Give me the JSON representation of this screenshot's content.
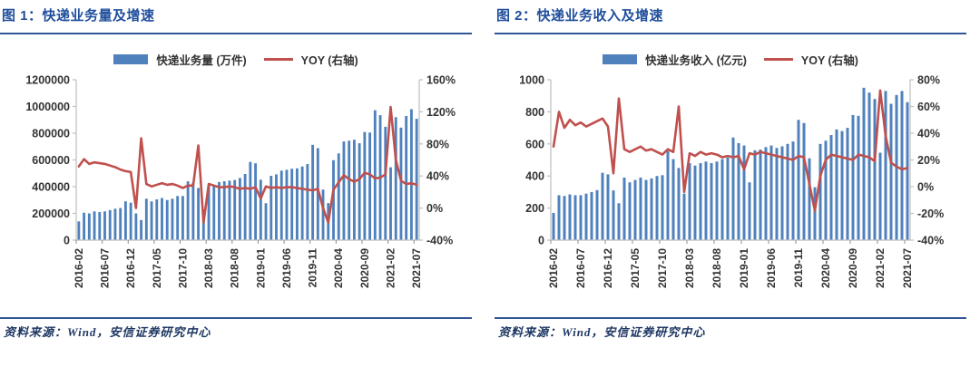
{
  "figures": [
    {
      "title": "图 1：快递业务量及增速",
      "source": "资料来源：Wind，安信证券研究中心"
    },
    {
      "title": "图 2：快递业务收入及增速",
      "source": "资料来源：Wind，安信证券研究中心"
    }
  ],
  "colors": {
    "bar": "#4F81BD",
    "line": "#C0504D",
    "title_blue": "#1F4E9C",
    "rule_blue": "#2F5597",
    "source_navy": "#1F3864",
    "axis_gray": "#BFBFBF",
    "tick_text": "#333333"
  },
  "chart_data": [
    {
      "type": "bar",
      "title": "图 1：快递业务量及增速",
      "x": [
        "2016-02",
        "2016-03",
        "2016-04",
        "2016-05",
        "2016-06",
        "2016-07",
        "2016-08",
        "2016-09",
        "2016-10",
        "2016-11",
        "2016-12",
        "2017-01",
        "2017-02",
        "2017-03",
        "2017-04",
        "2017-05",
        "2017-06",
        "2017-07",
        "2017-08",
        "2017-09",
        "2017-10",
        "2017-11",
        "2017-12",
        "2018-01",
        "2018-02",
        "2018-03",
        "2018-04",
        "2018-05",
        "2018-06",
        "2018-07",
        "2018-08",
        "2018-09",
        "2018-10",
        "2018-11",
        "2018-12",
        "2019-01",
        "2019-02",
        "2019-03",
        "2019-04",
        "2019-05",
        "2019-06",
        "2019-07",
        "2019-08",
        "2019-09",
        "2019-10",
        "2019-11",
        "2019-12",
        "2020-01",
        "2020-02",
        "2020-03",
        "2020-04",
        "2020-05",
        "2020-06",
        "2020-07",
        "2020-08",
        "2020-09",
        "2020-10",
        "2020-11",
        "2020-12",
        "2021-01",
        "2021-02",
        "2021-03",
        "2021-04",
        "2021-05",
        "2021-06",
        "2021-07"
      ],
      "x_tick_labels": [
        "2016-02",
        "2016-07",
        "2016-12",
        "2017-05",
        "2017-10",
        "2018-03",
        "2018-08",
        "2019-01",
        "2019-06",
        "2019-11",
        "2020-04",
        "2020-09",
        "2021-02",
        "2021-07"
      ],
      "series": [
        {
          "name": "快递业务量 (万件)",
          "type": "bar",
          "axis": "left",
          "color": "#4F81BD",
          "values": [
            140000,
            205000,
            200000,
            215000,
            210000,
            215000,
            225000,
            235000,
            240000,
            290000,
            280000,
            200000,
            150000,
            310000,
            290000,
            305000,
            315000,
            300000,
            310000,
            330000,
            330000,
            440000,
            430000,
            390000,
            230000,
            405000,
            415000,
            435000,
            440000,
            445000,
            450000,
            465000,
            495000,
            585000,
            575000,
            452000,
            276000,
            481000,
            492000,
            520000,
            526000,
            534000,
            537000,
            551000,
            569000,
            713000,
            688000,
            378000,
            277000,
            598000,
            649000,
            738000,
            744000,
            751000,
            725000,
            809000,
            805000,
            972000,
            935000,
            848000,
            545000,
            920000,
            842000,
            929000,
            980000,
            908000
          ]
        },
        {
          "name": "YOY (右轴)",
          "type": "line",
          "axis": "right",
          "color": "#C0504D",
          "values": [
            52,
            61,
            55,
            57,
            56,
            55,
            53,
            51,
            48,
            46,
            45,
            0,
            87,
            30,
            27,
            29,
            31,
            29,
            30,
            28,
            25,
            28,
            28,
            78,
            -18,
            30,
            28,
            26,
            26,
            27,
            26,
            24,
            25,
            24,
            26,
            12,
            27,
            25,
            26,
            25,
            26,
            26,
            25,
            24,
            23,
            22,
            24,
            0,
            -18,
            23,
            32,
            41,
            36,
            33,
            36,
            44,
            42,
            37,
            38,
            42,
            126,
            60,
            34,
            30,
            31,
            29
          ]
        }
      ],
      "left_axis": {
        "min": 0,
        "max": 1200000,
        "step": 200000,
        "format": "number"
      },
      "right_axis": {
        "min": -40,
        "max": 160,
        "step": 40,
        "format": "percent"
      },
      "grid": "off",
      "legend_position": "top"
    },
    {
      "type": "bar",
      "title": "图 2：快递业务收入及增速",
      "x": [
        "2016-02",
        "2016-03",
        "2016-04",
        "2016-05",
        "2016-06",
        "2016-07",
        "2016-08",
        "2016-09",
        "2016-10",
        "2016-11",
        "2016-12",
        "2017-01",
        "2017-02",
        "2017-03",
        "2017-04",
        "2017-05",
        "2017-06",
        "2017-07",
        "2017-08",
        "2017-09",
        "2017-10",
        "2017-11",
        "2017-12",
        "2018-01",
        "2018-02",
        "2018-03",
        "2018-04",
        "2018-05",
        "2018-06",
        "2018-07",
        "2018-08",
        "2018-09",
        "2018-10",
        "2018-11",
        "2018-12",
        "2019-01",
        "2019-02",
        "2019-03",
        "2019-04",
        "2019-05",
        "2019-06",
        "2019-07",
        "2019-08",
        "2019-09",
        "2019-10",
        "2019-11",
        "2019-12",
        "2020-01",
        "2020-02",
        "2020-03",
        "2020-04",
        "2020-05",
        "2020-06",
        "2020-07",
        "2020-08",
        "2020-09",
        "2020-10",
        "2020-11",
        "2020-12",
        "2021-01",
        "2021-02",
        "2021-03",
        "2021-04",
        "2021-05",
        "2021-06",
        "2021-07"
      ],
      "x_tick_labels": [
        "2016-02",
        "2016-07",
        "2016-12",
        "2017-05",
        "2017-10",
        "2018-03",
        "2018-08",
        "2019-01",
        "2019-06",
        "2019-11",
        "2020-04",
        "2020-09",
        "2021-02",
        "2021-07"
      ],
      "series": [
        {
          "name": "快递业务收入 (亿元)",
          "type": "bar",
          "axis": "left",
          "color": "#4F81BD",
          "values": [
            170,
            280,
            275,
            285,
            280,
            280,
            290,
            300,
            312,
            420,
            410,
            310,
            230,
            390,
            360,
            375,
            390,
            375,
            385,
            400,
            405,
            555,
            505,
            450,
            290,
            480,
            465,
            480,
            490,
            480,
            490,
            505,
            515,
            640,
            605,
            590,
            360,
            560,
            565,
            580,
            590,
            575,
            585,
            600,
            615,
            750,
            730,
            510,
            330,
            600,
            620,
            655,
            690,
            680,
            700,
            780,
            775,
            950,
            920,
            880,
            545,
            930,
            850,
            905,
            930,
            860
          ]
        },
        {
          "name": "YOY (右轴)",
          "type": "line",
          "axis": "right",
          "color": "#C0504D",
          "values": [
            30,
            56,
            44,
            50,
            46,
            48,
            45,
            47,
            49,
            51,
            45,
            10,
            66,
            28,
            26,
            28,
            30,
            27,
            28,
            26,
            24,
            28,
            26,
            60,
            -4,
            25,
            23,
            26,
            24,
            25,
            24,
            22,
            23,
            22,
            23,
            13,
            25,
            24,
            26,
            25,
            24,
            23,
            22,
            21,
            20,
            23,
            22,
            2,
            -18,
            8,
            20,
            24,
            23,
            22,
            21,
            20,
            24,
            23,
            22,
            19,
            72,
            38,
            18,
            15,
            13,
            14
          ]
        }
      ],
      "left_axis": {
        "min": 0,
        "max": 1000,
        "step": 200,
        "format": "number"
      },
      "right_axis": {
        "min": -40,
        "max": 80,
        "step": 20,
        "format": "percent"
      },
      "grid": "off",
      "legend_position": "top"
    }
  ]
}
